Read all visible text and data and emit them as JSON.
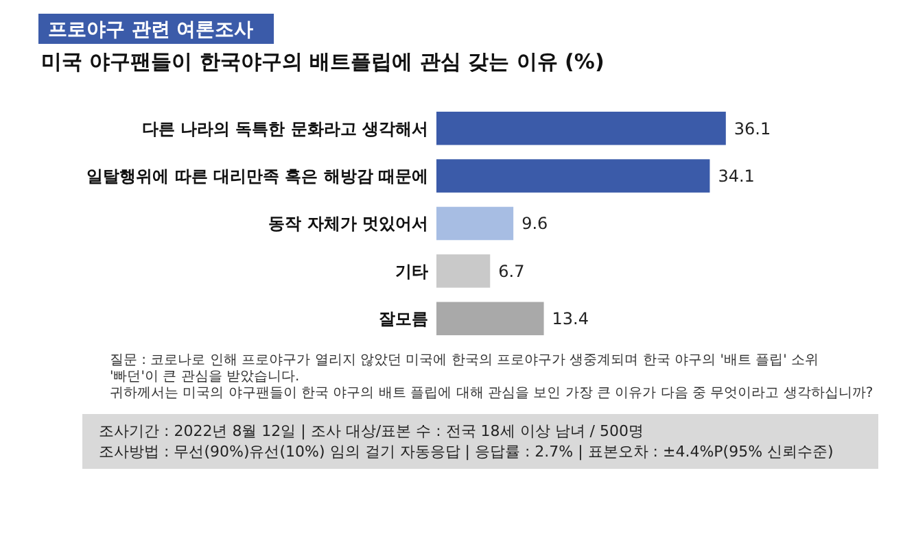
{
  "chart_data": {
    "type": "bar",
    "orientation": "horizontal",
    "subtitle": "프로야구 관련 여론조사",
    "title": "미국 야구팬들이 한국야구의 배트플립에 관심 갖는 이유 (%)",
    "categories": [
      "다른 나라의 독특한 문화라고 생각해서",
      "일탈행위에 따른 대리만족 혹은 해방감 때문에",
      "동작 자체가 멋있어서",
      "기타",
      "잘모름"
    ],
    "values": [
      36.1,
      34.1,
      9.6,
      6.7,
      13.4
    ],
    "colors": [
      "#3b5ba9",
      "#3b5ba9",
      "#a7bde3",
      "#c9c9c9",
      "#a9a9a9"
    ],
    "data_labels": true,
    "annotations": [
      "질문 : 코로나로 인해 프로야구가 열리지 않았던 미국에 한국의 프로야구가 생중계되며 한국 야구의 '배트 플립' 소위 '빠던'이 큰 관심을 받았습니다.",
      "귀하께서는 미국의 야구팬들이 한국 야구의 배트 플립에 대해 관심을 보인 가장 큰 이유가 다음 중 무엇이라고 생각하십니까?",
      "조사기간 : 2022년 8월 12일  |  조사 대상/표본 수 : 전국 18세 이상 남녀 / 500명",
      "조사방법 : 무선(90%)유선(10%) 임의 걸기 자동응답  |  응답률 : 2.7%  |  표본오차 : ±4.4%P(95% 신뢰수준)"
    ]
  }
}
